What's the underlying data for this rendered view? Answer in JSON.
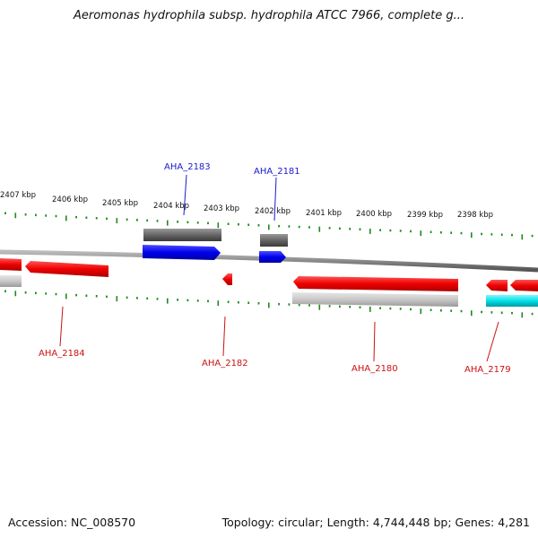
{
  "title": "Aeromonas hydrophila subsp. hydrophila ATCC 7966, complete g...",
  "footer": {
    "accession": "Accession: NC_008570",
    "topology": "Topology: circular; Length: 4,744,448 bp; Genes: 4,281"
  },
  "colors": {
    "backbone": "#8a8a8a",
    "tick": "#1e8a1e",
    "gene_forward": "#0000ee",
    "gene_reverse": "#ee0000",
    "gene_gray": "#666666",
    "gene_light": "#c8c8c8",
    "gene_cyan": "#00e0e8",
    "label_forward": "#1a1acc",
    "label_reverse": "#cc1111"
  },
  "scale_labels": [
    "2407 kbp",
    "2406 kbp",
    "2405 kbp",
    "2404 kbp",
    "2403 kbp",
    "2402 kbp",
    "2401 kbp",
    "2400 kbp",
    "2399 kbp",
    "2398 kbp"
  ],
  "gene_labels": [
    "AHA_2183",
    "AHA_2181",
    "AHA_2184",
    "AHA_2182",
    "AHA_2180",
    "AHA_2179"
  ]
}
